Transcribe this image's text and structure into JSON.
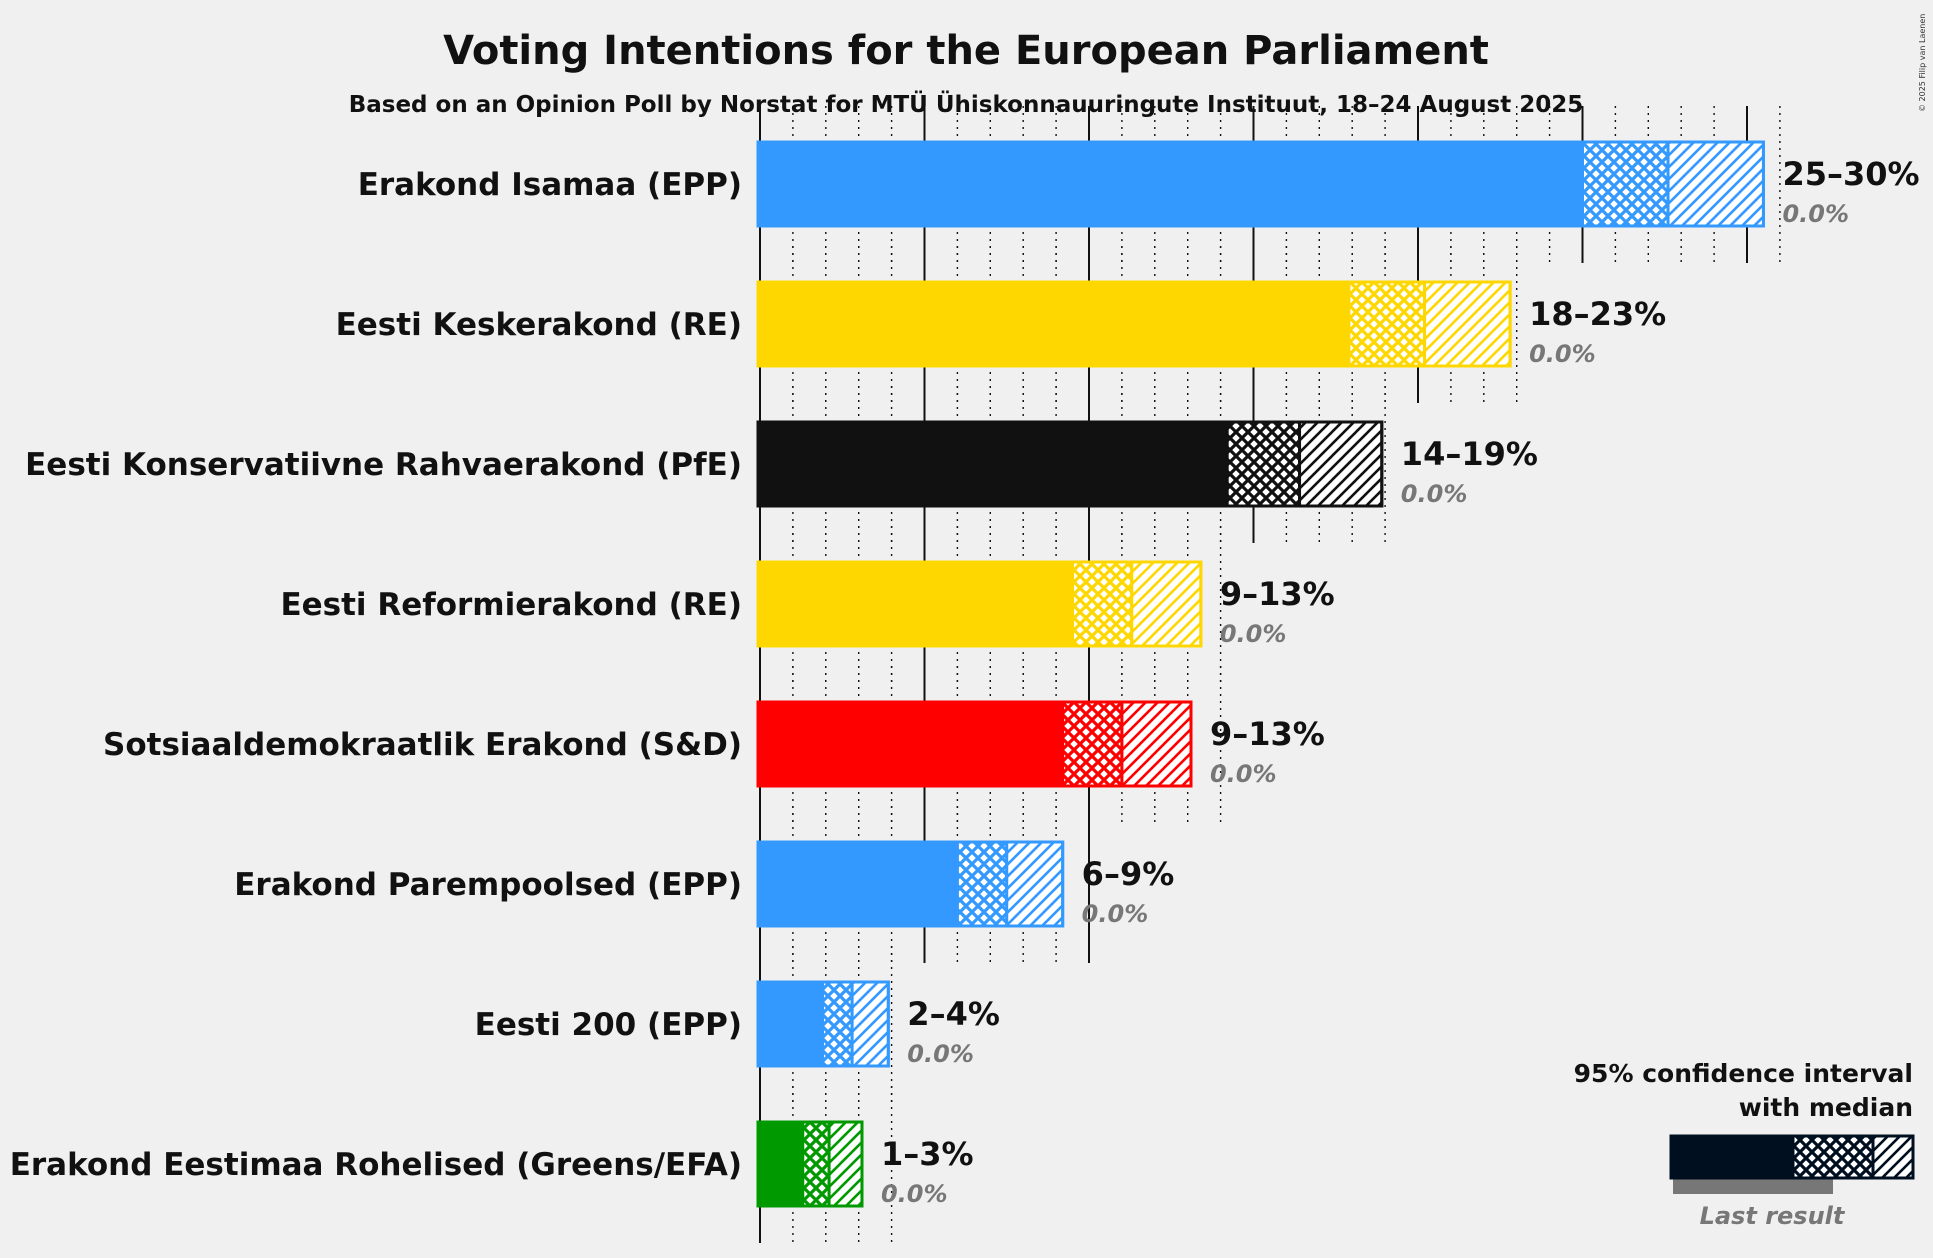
{
  "title": "Voting Intentions for the European Parliament",
  "subtitle": "Based on an Opinion Poll by Norstat for MTÜ Ühiskonnauuringute Instituut, 18–24 August 2025",
  "copyright": "© 2025 Filip van Laenen",
  "legend": {
    "line1": "95% confidence interval",
    "line2": "with median",
    "last_result": "Last result"
  },
  "chart_data": {
    "type": "bar",
    "orientation": "horizontal",
    "x_unit": "%",
    "xlim": [
      0,
      31
    ],
    "categories": [
      "Erakond Isamaa (EPP)",
      "Eesti Keskerakond (RE)",
      "Eesti Konservatiivne Rahvaerakond (PfE)",
      "Eesti Reformierakond (RE)",
      "Sotsiaaldemokraatlik Erakond (S&D)",
      "Erakond Parempoolsed (EPP)",
      "Eesti 200 (EPP)",
      "Erakond Eestimaa Rohelised (Greens/EFA)"
    ],
    "series": [
      {
        "label": "Erakond Isamaa (EPP)",
        "color": "#3399ff",
        "ci_low": 25.0,
        "median": 27.6,
        "ci_high": 30.5,
        "range_label": "25–30%",
        "last_result": 0.0,
        "last_label": "0.0%"
      },
      {
        "label": "Eesti Keskerakond (RE)",
        "color": "#ffd700",
        "ci_low": 17.9,
        "median": 20.2,
        "ci_high": 22.8,
        "range_label": "18–23%",
        "last_result": 0.0,
        "last_label": "0.0%"
      },
      {
        "label": "Eesti Konservatiivne Rahvaerakond (PfE)",
        "color": "#111111",
        "ci_low": 14.2,
        "median": 16.4,
        "ci_high": 18.9,
        "range_label": "14–19%",
        "last_result": 0.0,
        "last_label": "0.0%"
      },
      {
        "label": "Eesti Reformierakond (RE)",
        "color": "#ffd700",
        "ci_low": 9.5,
        "median": 11.3,
        "ci_high": 13.4,
        "range_label": "9–13%",
        "last_result": 0.0,
        "last_label": "0.0%"
      },
      {
        "label": "Sotsiaaldemokraatlik Erakond (S&D)",
        "color": "#ff0000",
        "ci_low": 9.2,
        "median": 11.0,
        "ci_high": 13.1,
        "range_label": "9–13%",
        "last_result": 0.0,
        "last_label": "0.0%"
      },
      {
        "label": "Erakond Parempoolsed (EPP)",
        "color": "#3399ff",
        "ci_low": 6.0,
        "median": 7.5,
        "ci_high": 9.2,
        "range_label": "6–9%",
        "last_result": 0.0,
        "last_label": "0.0%"
      },
      {
        "label": "Eesti 200 (EPP)",
        "color": "#3399ff",
        "ci_low": 1.9,
        "median": 2.8,
        "ci_high": 3.9,
        "range_label": "2–4%",
        "last_result": 0.0,
        "last_label": "0.0%"
      },
      {
        "label": "Erakond Eestimaa Rohelised (Greens/EFA)",
        "color": "#009900",
        "ci_low": 1.3,
        "median": 2.1,
        "ci_high": 3.1,
        "range_label": "1–3%",
        "last_result": 0.0,
        "last_label": "0.0%"
      }
    ]
  }
}
